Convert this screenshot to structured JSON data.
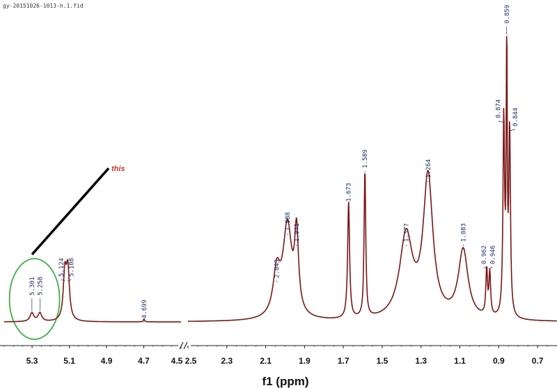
{
  "file_name": "gy-20151026-1013-h.1.fid",
  "colors": {
    "spectrum": "#7a1414",
    "peak_label": "#1f2f6b",
    "annotation_text": "#c0392b",
    "highlight_ellipse": "#3cb043",
    "pointer_line": "#000000"
  },
  "chart_data": {
    "type": "line",
    "title": "",
    "xlabel": "f1 (ppm)",
    "ylabel": "",
    "x_reversed": true,
    "axis_break": {
      "from": 4.5,
      "to": 2.5
    },
    "segments": [
      {
        "xlim": [
          5.45,
          4.5
        ],
        "ticks": [
          5.3,
          5.1,
          4.9,
          4.7
        ]
      },
      {
        "xlim": [
          2.5,
          0.6
        ],
        "ticks": [
          2.5,
          2.3,
          2.1,
          1.9,
          1.7,
          1.5,
          1.3,
          1.1,
          0.9,
          0.7
        ]
      }
    ],
    "tick_labels": [
      "5.3",
      "5.1",
      "4.9",
      "4.7",
      "4.5",
      "2.5",
      "2.3",
      "2.1",
      "1.9",
      "1.7",
      "1.5",
      "1.3",
      "1.1",
      "0.9",
      "0.7"
    ],
    "peaks": [
      {
        "ppm": 5.301,
        "label": "5.301",
        "intensity": 0.03
      },
      {
        "ppm": 5.258,
        "label": "5.258",
        "intensity": 0.03
      },
      {
        "ppm": 5.124,
        "label": "5.124",
        "intensity": 0.16
      },
      {
        "ppm": 5.108,
        "label": "5.108",
        "intensity": 0.17
      },
      {
        "ppm": 4.699,
        "label": "4.699",
        "intensity": 0.01
      },
      {
        "ppm": 2.043,
        "label": "2.043",
        "intensity": 0.15
      },
      {
        "ppm": 1.988,
        "label": "1.988",
        "intensity": 0.32
      },
      {
        "ppm": 1.941,
        "label": "1.941",
        "intensity": 0.27
      },
      {
        "ppm": 1.673,
        "label": "1.673",
        "intensity": 0.41
      },
      {
        "ppm": 1.589,
        "label": "1.589",
        "intensity": 0.52
      },
      {
        "ppm": 1.377,
        "label": "1.377",
        "intensity": 0.29
      },
      {
        "ppm": 1.264,
        "label": "1.264",
        "intensity": 0.49
      },
      {
        "ppm": 1.083,
        "label": "1.083",
        "intensity": 0.24
      },
      {
        "ppm": 0.962,
        "label": "0.962",
        "intensity": 0.16
      },
      {
        "ppm": 0.946,
        "label": "0.946",
        "intensity": 0.15
      },
      {
        "ppm": 0.874,
        "label": "0.874",
        "intensity": 0.69
      },
      {
        "ppm": 0.859,
        "label": "0.859",
        "intensity": 1.0
      },
      {
        "ppm": 0.844,
        "label": "0.844",
        "intensity": 0.65
      }
    ],
    "annotation": {
      "text": "this",
      "points_to_ppm": [
        5.301,
        5.258
      ]
    }
  }
}
